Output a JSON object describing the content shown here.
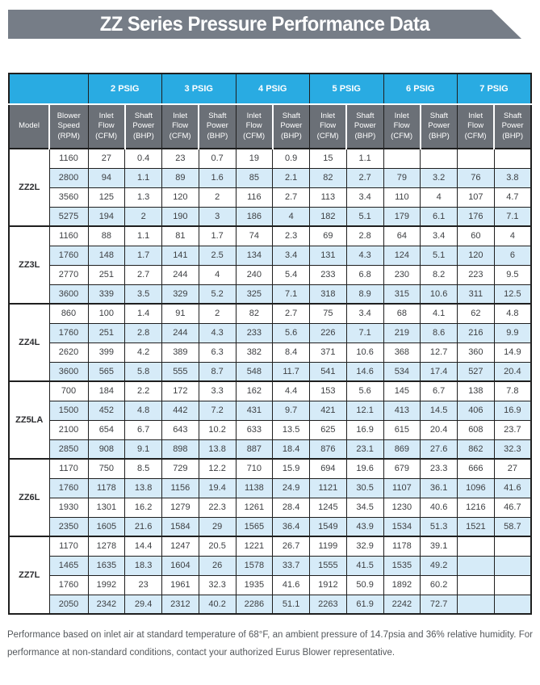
{
  "title": "ZZ Series Pressure Performance Data",
  "colors": {
    "accent_blue": "#29ABE2",
    "header_gray": "#6B7077",
    "banner_gray": "#767D87",
    "row_blue": "#D6EBF8",
    "border_dark": "#1F1F1F",
    "text_dark": "#3E4043",
    "footer_gray": "#54585C"
  },
  "table": {
    "model_header": "Model",
    "speed_header": "Blower Speed (RPM)",
    "flow_header": "Inlet Flow (CFM)",
    "power_header": "Shaft Power (BHP)",
    "psig_columns": [
      "2 PSIG",
      "3 PSIG",
      "4 PSIG",
      "5 PSIG",
      "6 PSIG",
      "7 PSIG"
    ],
    "groups": [
      {
        "model": "ZZ2L",
        "rows": [
          {
            "rpm": "1160",
            "values": [
              "27",
              "0.4",
              "23",
              "0.7",
              "19",
              "0.9",
              "15",
              "1.1",
              "",
              "",
              "",
              ""
            ]
          },
          {
            "rpm": "2800",
            "values": [
              "94",
              "1.1",
              "89",
              "1.6",
              "85",
              "2.1",
              "82",
              "2.7",
              "79",
              "3.2",
              "76",
              "3.8"
            ]
          },
          {
            "rpm": "3560",
            "values": [
              "125",
              "1.3",
              "120",
              "2",
              "116",
              "2.7",
              "113",
              "3.4",
              "110",
              "4",
              "107",
              "4.7"
            ]
          },
          {
            "rpm": "5275",
            "values": [
              "194",
              "2",
              "190",
              "3",
              "186",
              "4",
              "182",
              "5.1",
              "179",
              "6.1",
              "176",
              "7.1"
            ]
          }
        ]
      },
      {
        "model": "ZZ3L",
        "rows": [
          {
            "rpm": "1160",
            "values": [
              "88",
              "1.1",
              "81",
              "1.7",
              "74",
              "2.3",
              "69",
              "2.8",
              "64",
              "3.4",
              "60",
              "4"
            ]
          },
          {
            "rpm": "1760",
            "values": [
              "148",
              "1.7",
              "141",
              "2.5",
              "134",
              "3.4",
              "131",
              "4.3",
              "124",
              "5.1",
              "120",
              "6"
            ]
          },
          {
            "rpm": "2770",
            "values": [
              "251",
              "2.7",
              "244",
              "4",
              "240",
              "5.4",
              "233",
              "6.8",
              "230",
              "8.2",
              "223",
              "9.5"
            ]
          },
          {
            "rpm": "3600",
            "values": [
              "339",
              "3.5",
              "329",
              "5.2",
              "325",
              "7.1",
              "318",
              "8.9",
              "315",
              "10.6",
              "311",
              "12.5"
            ]
          }
        ]
      },
      {
        "model": "ZZ4L",
        "rows": [
          {
            "rpm": "860",
            "values": [
              "100",
              "1.4",
              "91",
              "2",
              "82",
              "2.7",
              "75",
              "3.4",
              "68",
              "4.1",
              "62",
              "4.8"
            ]
          },
          {
            "rpm": "1760",
            "values": [
              "251",
              "2.8",
              "244",
              "4.3",
              "233",
              "5.6",
              "226",
              "7.1",
              "219",
              "8.6",
              "216",
              "9.9"
            ]
          },
          {
            "rpm": "2620",
            "values": [
              "399",
              "4.2",
              "389",
              "6.3",
              "382",
              "8.4",
              "371",
              "10.6",
              "368",
              "12.7",
              "360",
              "14.9"
            ]
          },
          {
            "rpm": "3600",
            "values": [
              "565",
              "5.8",
              "555",
              "8.7",
              "548",
              "11.7",
              "541",
              "14.6",
              "534",
              "17.4",
              "527",
              "20.4"
            ]
          }
        ]
      },
      {
        "model": "ZZ5LA",
        "rows": [
          {
            "rpm": "700",
            "values": [
              "184",
              "2.2",
              "172",
              "3.3",
              "162",
              "4.4",
              "153",
              "5.6",
              "145",
              "6.7",
              "138",
              "7.8"
            ]
          },
          {
            "rpm": "1500",
            "values": [
              "452",
              "4.8",
              "442",
              "7.2",
              "431",
              "9.7",
              "421",
              "12.1",
              "413",
              "14.5",
              "406",
              "16.9"
            ]
          },
          {
            "rpm": "2100",
            "values": [
              "654",
              "6.7",
              "643",
              "10.2",
              "633",
              "13.5",
              "625",
              "16.9",
              "615",
              "20.4",
              "608",
              "23.7"
            ]
          },
          {
            "rpm": "2850",
            "values": [
              "908",
              "9.1",
              "898",
              "13.8",
              "887",
              "18.4",
              "876",
              "23.1",
              "869",
              "27.6",
              "862",
              "32.3"
            ]
          }
        ]
      },
      {
        "model": "ZZ6L",
        "rows": [
          {
            "rpm": "1170",
            "values": [
              "750",
              "8.5",
              "729",
              "12.2",
              "710",
              "15.9",
              "694",
              "19.6",
              "679",
              "23.3",
              "666",
              "27"
            ]
          },
          {
            "rpm": "1760",
            "values": [
              "1178",
              "13.8",
              "1156",
              "19.4",
              "1138",
              "24.9",
              "1121",
              "30.5",
              "1107",
              "36.1",
              "1096",
              "41.6"
            ]
          },
          {
            "rpm": "1930",
            "values": [
              "1301",
              "16.2",
              "1279",
              "22.3",
              "1261",
              "28.4",
              "1245",
              "34.5",
              "1230",
              "40.6",
              "1216",
              "46.7"
            ]
          },
          {
            "rpm": "2350",
            "values": [
              "1605",
              "21.6",
              "1584",
              "29",
              "1565",
              "36.4",
              "1549",
              "43.9",
              "1534",
              "51.3",
              "1521",
              "58.7"
            ]
          }
        ]
      },
      {
        "model": "ZZ7L",
        "rows": [
          {
            "rpm": "1170",
            "values": [
              "1278",
              "14.4",
              "1247",
              "20.5",
              "1221",
              "26.7",
              "1199",
              "32.9",
              "1178",
              "39.1",
              "",
              ""
            ]
          },
          {
            "rpm": "1465",
            "values": [
              "1635",
              "18.3",
              "1604",
              "26",
              "1578",
              "33.7",
              "1555",
              "41.5",
              "1535",
              "49.2",
              "",
              ""
            ]
          },
          {
            "rpm": "1760",
            "values": [
              "1992",
              "23",
              "1961",
              "32.3",
              "1935",
              "41.6",
              "1912",
              "50.9",
              "1892",
              "60.2",
              "",
              ""
            ]
          },
          {
            "rpm": "2050",
            "values": [
              "2342",
              "29.4",
              "2312",
              "40.2",
              "2286",
              "51.1",
              "2263",
              "61.9",
              "2242",
              "72.7",
              "",
              ""
            ]
          }
        ]
      }
    ]
  },
  "footer": {
    "note": "Performance based on inlet air at standard temperature of 68°F, an ambient pressure of 14.7psia and 36% relative humidity. For performance at non-standard conditions, contact your authorized Eurus Blower representative."
  }
}
